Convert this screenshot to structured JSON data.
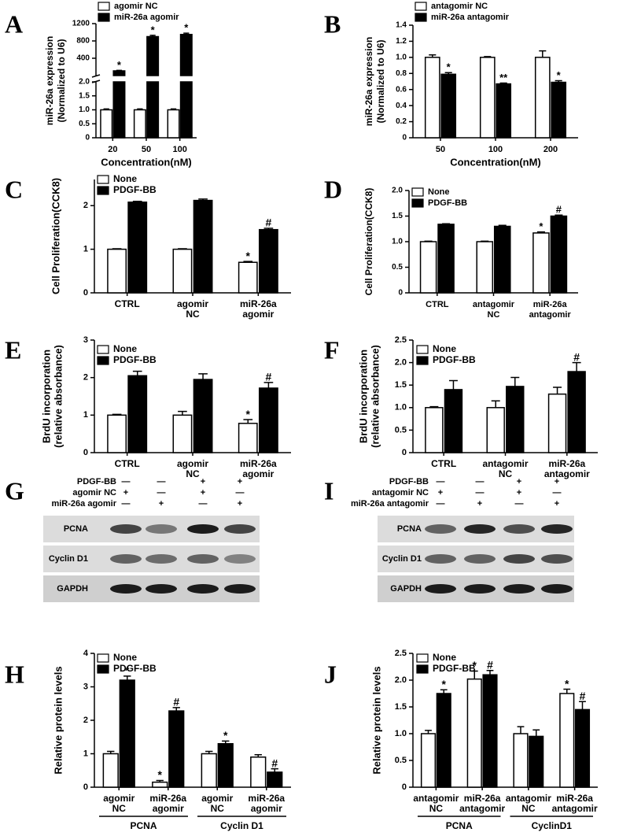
{
  "chart_data": [
    {
      "type": "bar",
      "panel": "A",
      "ylabel": [
        "miR-26a expression",
        "(Normalized to U6)"
      ],
      "xlabel": "Concentration(nM)",
      "categories": [
        [
          "20"
        ],
        [
          "50"
        ],
        [
          "100"
        ]
      ],
      "ylim": [
        0,
        2.0
      ],
      "yticks": [
        0,
        0.5,
        {
          "value": 1,
          "label": "1.0"
        },
        1.5,
        {
          "value": 2,
          "label": "2.0"
        }
      ],
      "ylim_upper": [
        0,
        1200
      ],
      "yticks_upper": [
        400,
        800,
        1200
      ],
      "series": [
        {
          "name": "agomir NC",
          "color": "#ffffff",
          "values": [
            1,
            1,
            1
          ],
          "errors": [
            0.03,
            0.03,
            0.03
          ]
        },
        {
          "name": "miR-26a agomir",
          "color": "#000000",
          "values": [
            110,
            900,
            950
          ],
          "errors": [
            10,
            30,
            30
          ],
          "marks": [
            "*",
            "*",
            "*"
          ]
        }
      ]
    },
    {
      "type": "bar",
      "panel": "B",
      "ylabel": [
        "miR-26a expression",
        "(Normalized to U6)"
      ],
      "xlabel": "Concentration(nM)",
      "categories": [
        [
          "50"
        ],
        [
          "100"
        ],
        [
          "200"
        ]
      ],
      "ylim": [
        0,
        1.4
      ],
      "yticks": [
        0,
        0.2,
        0.4,
        0.6,
        0.8,
        {
          "value": 1,
          "label": "1.0"
        },
        1.2,
        1.4
      ],
      "series": [
        {
          "name": "antagomir NC",
          "color": "#ffffff",
          "values": [
            1.0,
            1.0,
            1.0
          ],
          "errors": [
            0.03,
            0.01,
            0.08
          ]
        },
        {
          "name": "miR-26a antagomir",
          "color": "#000000",
          "values": [
            0.79,
            0.67,
            0.69
          ],
          "errors": [
            0.02,
            0.01,
            0.02
          ],
          "marks": [
            "*",
            "**",
            "*"
          ]
        }
      ]
    },
    {
      "type": "bar",
      "panel": "C",
      "ylabel": [
        "Cell Proliferation(CCK8)"
      ],
      "categories": [
        [
          "CTRL"
        ],
        [
          "agomir",
          "NC"
        ],
        [
          "miR-26a",
          "agomir"
        ]
      ],
      "ylim": [
        0,
        2.6
      ],
      "yticks": [
        0,
        1,
        2
      ],
      "series": [
        {
          "name": "None",
          "color": "#ffffff",
          "values": [
            1.0,
            1.0,
            0.7
          ],
          "errors": [
            0.01,
            0.01,
            0.02
          ],
          "marks": [
            null,
            null,
            "*"
          ]
        },
        {
          "name": "PDGF-BB",
          "color": "#000000",
          "values": [
            2.08,
            2.12,
            1.45
          ],
          "errors": [
            0.02,
            0.03,
            0.03
          ],
          "marks": [
            null,
            null,
            "#"
          ]
        }
      ]
    },
    {
      "type": "bar",
      "panel": "D",
      "ylabel": [
        "Cell Proliferation(CCK8)"
      ],
      "categories": [
        [
          "CTRL"
        ],
        [
          "antagomir",
          "NC"
        ],
        [
          "miR-26a",
          "antagomir"
        ]
      ],
      "ylim": [
        0,
        2.0
      ],
      "yticks": [
        0,
        0.5,
        {
          "value": 1,
          "label": "1.0"
        },
        1.5,
        {
          "value": 2,
          "label": "2.0"
        }
      ],
      "series": [
        {
          "name": "None",
          "color": "#ffffff",
          "values": [
            1.0,
            1.0,
            1.17
          ],
          "errors": [
            0.01,
            0.01,
            0.02
          ],
          "marks": [
            null,
            null,
            "*"
          ]
        },
        {
          "name": "PDGF-BB",
          "color": "#000000",
          "values": [
            1.34,
            1.3,
            1.5
          ],
          "errors": [
            0.01,
            0.02,
            0.02
          ],
          "marks": [
            null,
            null,
            "#"
          ]
        }
      ]
    },
    {
      "type": "bar",
      "panel": "E",
      "ylabel": [
        "BrdU incorporation",
        "(relative absorbance)"
      ],
      "categories": [
        [
          "CTRL"
        ],
        [
          "agomir",
          "NC"
        ],
        [
          "miR-26a",
          "agomir"
        ]
      ],
      "ylim": [
        0,
        3
      ],
      "yticks": [
        0,
        1,
        2,
        3
      ],
      "series": [
        {
          "name": "None",
          "color": "#ffffff",
          "values": [
            1.0,
            1.0,
            0.78
          ],
          "errors": [
            0.02,
            0.1,
            0.1
          ],
          "marks": [
            null,
            null,
            "*"
          ]
        },
        {
          "name": "PDGF-BB",
          "color": "#000000",
          "values": [
            2.05,
            1.95,
            1.72
          ],
          "errors": [
            0.12,
            0.15,
            0.15
          ],
          "marks": [
            null,
            null,
            "#"
          ]
        }
      ]
    },
    {
      "type": "bar",
      "panel": "F",
      "ylabel": [
        "BrdU incorporation",
        "(relative absorbance)"
      ],
      "categories": [
        [
          "CTRL"
        ],
        [
          "antagomir",
          "NC"
        ],
        [
          "miR-26a",
          "antagomir"
        ]
      ],
      "ylim": [
        0,
        2.5
      ],
      "yticks": [
        0,
        0.5,
        {
          "value": 1,
          "label": "1.0"
        },
        1.5,
        {
          "value": 2,
          "label": "2.0"
        },
        2.5
      ],
      "series": [
        {
          "name": "None",
          "color": "#ffffff",
          "values": [
            1.0,
            1.0,
            1.3
          ],
          "errors": [
            0.02,
            0.15,
            0.15
          ]
        },
        {
          "name": "PDGF-BB",
          "color": "#000000",
          "values": [
            1.4,
            1.47,
            1.8
          ],
          "errors": [
            0.2,
            0.2,
            0.2
          ],
          "marks": [
            null,
            null,
            "#"
          ]
        }
      ]
    },
    {
      "type": "bar",
      "panel": "H",
      "ylabel": [
        "Relative protein levels"
      ],
      "categories": [
        [
          "agomir",
          "NC"
        ],
        [
          "miR-26a",
          "agomir"
        ],
        [
          "agomir",
          "NC"
        ],
        [
          "miR-26a",
          "agomir"
        ]
      ],
      "groups": [
        "PCNA",
        "Cyclin D1"
      ],
      "ylim": [
        0,
        4
      ],
      "yticks": [
        0,
        1,
        2,
        3,
        4
      ],
      "series": [
        {
          "name": "None",
          "color": "#ffffff",
          "values": [
            1.0,
            0.15,
            1.0,
            0.9
          ],
          "errors": [
            0.07,
            0.05,
            0.07,
            0.07
          ],
          "marks": [
            null,
            "*",
            null,
            null
          ]
        },
        {
          "name": "PDGF-BB",
          "color": "#000000",
          "values": [
            3.2,
            2.28,
            1.3,
            0.45
          ],
          "errors": [
            0.12,
            0.1,
            0.08,
            0.1
          ],
          "marks": [
            "*",
            "#",
            "*",
            "#"
          ]
        }
      ]
    },
    {
      "type": "bar",
      "panel": "J",
      "ylabel": [
        "Relative protein levels"
      ],
      "categories": [
        [
          "antagomir",
          "NC"
        ],
        [
          "miR-26a",
          "antagomir"
        ],
        [
          "antagomir",
          "NC"
        ],
        [
          "miR-26a",
          "antagomir"
        ]
      ],
      "groups": [
        "PCNA",
        "CyclinD1"
      ],
      "ylim": [
        0,
        2.5
      ],
      "yticks": [
        0,
        0.5,
        {
          "value": 1,
          "label": "1.0"
        },
        1.5,
        {
          "value": 2,
          "label": "2.0"
        },
        2.5
      ],
      "series": [
        {
          "name": "None",
          "color": "#ffffff",
          "values": [
            1.0,
            2.02,
            1.0,
            1.75
          ],
          "errors": [
            0.06,
            0.15,
            0.13,
            0.08
          ],
          "marks": [
            null,
            "*",
            null,
            "*"
          ]
        },
        {
          "name": "PDGF-BB",
          "color": "#000000",
          "values": [
            1.75,
            2.1,
            0.95,
            1.45
          ],
          "errors": [
            0.07,
            0.08,
            0.12,
            0.15
          ],
          "marks": [
            "*",
            "#",
            null,
            "#"
          ]
        }
      ]
    }
  ],
  "blots": [
    {
      "panel": "G",
      "conditions": [
        {
          "label": "PDGF-BB",
          "signs": [
            "—",
            "—",
            "+",
            "+"
          ]
        },
        {
          "label": "agomir NC",
          "signs": [
            "+",
            "—",
            "+",
            "—"
          ]
        },
        {
          "label": "miR-26a agomir",
          "signs": [
            "—",
            "+",
            "—",
            "+"
          ]
        }
      ],
      "bands": [
        "PCNA",
        "Cyclin D1",
        "GAPDH"
      ]
    },
    {
      "panel": "I",
      "conditions": [
        {
          "label": "PDGF-BB",
          "signs": [
            "—",
            "—",
            "+",
            "+"
          ]
        },
        {
          "label": "antagomir NC",
          "signs": [
            "+",
            "—",
            "+",
            "—"
          ]
        },
        {
          "label": "miR-26a antagomir",
          "signs": [
            "—",
            "+",
            "—",
            "+"
          ]
        }
      ],
      "bands": [
        "PCNA",
        "Cyclin D1",
        "GAPDH"
      ]
    }
  ]
}
